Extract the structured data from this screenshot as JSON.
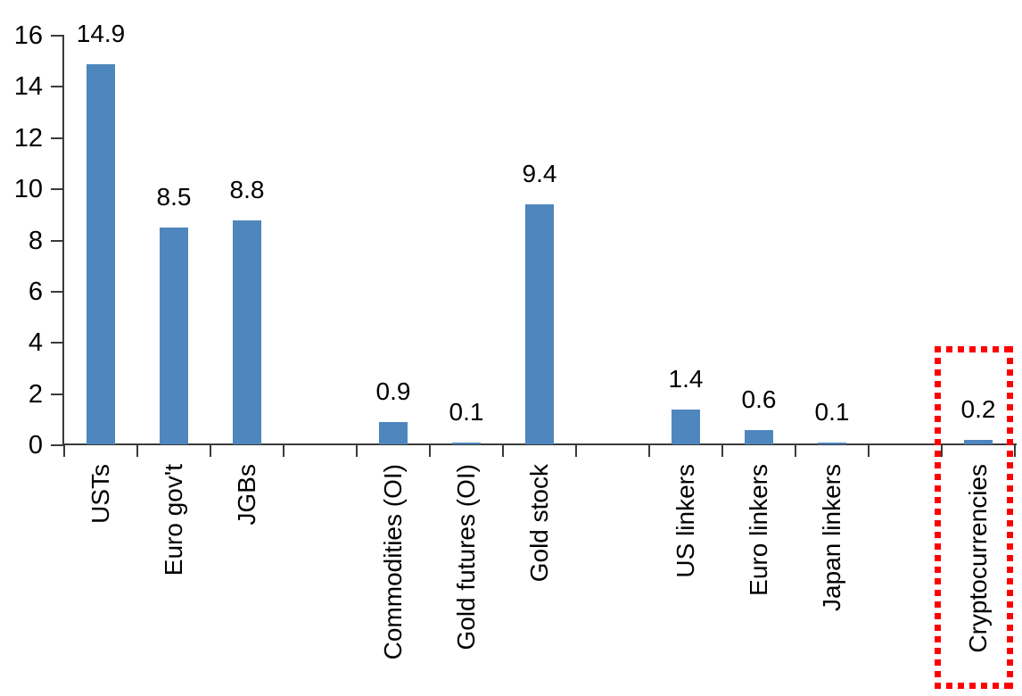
{
  "chart_data": {
    "type": "bar",
    "title": null,
    "legend": null,
    "grid": false,
    "ylim": [
      0,
      16
    ],
    "yticks": [
      0,
      2,
      4,
      6,
      8,
      10,
      12,
      14,
      16
    ],
    "categories": [
      "USTs",
      "Euro gov't",
      "JGBs",
      "",
      "Commodities (OI)",
      "Gold futures (OI)",
      "Gold stock",
      "",
      "US linkers",
      "Euro linkers",
      "Japan linkers",
      "",
      "Cryptocurrencies"
    ],
    "values": [
      14.9,
      8.5,
      8.8,
      null,
      0.9,
      0.1,
      9.4,
      null,
      1.4,
      0.6,
      0.1,
      null,
      0.2
    ],
    "data_labels": [
      "14.9",
      "8.5",
      "8.8",
      null,
      "0.9",
      "0.1",
      "9.4",
      null,
      "1.4",
      "0.6",
      "0.1",
      null,
      "0.2"
    ],
    "highlighted_category": "Cryptocurrencies",
    "colors": {
      "bar": "#4E86BE",
      "axis": "#3A3A3A",
      "text": "#000000",
      "highlight_box": "#FF0000"
    }
  }
}
